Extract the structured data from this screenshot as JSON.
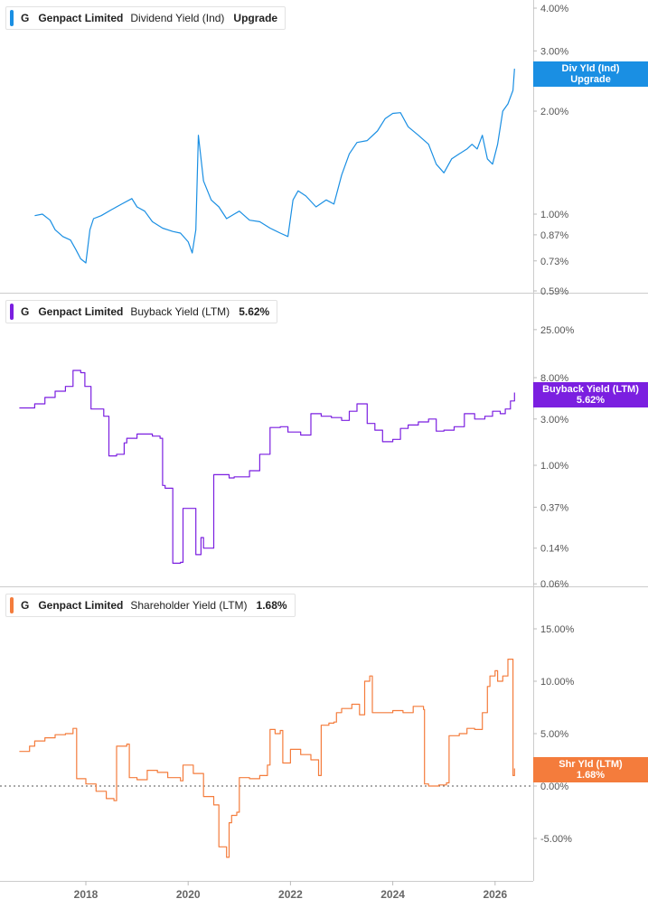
{
  "panels": [
    {
      "ticker": "G",
      "company": "Genpact Limited",
      "metric": "Dividend Yield (Ind)",
      "value": "Upgrade",
      "color": "#1a8fe3",
      "flag_lines": [
        "Div Yld (Ind)",
        "Upgrade"
      ],
      "ticks": [
        "4.00%",
        "3.00%",
        "2.00%",
        "1.00%",
        "0.87%",
        "0.73%",
        "0.59%"
      ]
    },
    {
      "ticker": "G",
      "company": "Genpact Limited",
      "metric": "Buyback Yield (LTM)",
      "value": "5.62%",
      "color": "#7b1fe0",
      "flag_lines": [
        "Buyback Yield (LTM)",
        "5.62%"
      ],
      "ticks": [
        "25.00%",
        "8.00%",
        "3.00%",
        "1.00%",
        "0.37%",
        "0.14%",
        "0.06%"
      ]
    },
    {
      "ticker": "G",
      "company": "Genpact Limited",
      "metric": "Shareholder Yield (LTM)",
      "value": "1.68%",
      "color": "#f47c3c",
      "flag_lines": [
        "Shr Yld (LTM)",
        "1.68%"
      ],
      "ticks": [
        "15.00%",
        "10.00%",
        "5.00%",
        "0.00%",
        "-5.00%"
      ]
    }
  ],
  "x_ticks": [
    "2018",
    "2020",
    "2022",
    "2024",
    "2026"
  ],
  "chart_data": [
    {
      "type": "line",
      "series": [
        {
          "name": "Dividend Yield (Ind)",
          "x": [
            2017.0,
            2017.15,
            2017.3,
            2017.4,
            2017.55,
            2017.7,
            2017.8,
            2017.9,
            2018.0,
            2018.08,
            2018.15,
            2018.3,
            2018.5,
            2018.7,
            2018.9,
            2019.0,
            2019.15,
            2019.3,
            2019.5,
            2019.7,
            2019.85,
            2020.0,
            2020.08,
            2020.15,
            2020.2,
            2020.3,
            2020.45,
            2020.6,
            2020.75,
            2020.9,
            2021.0,
            2021.2,
            2021.4,
            2021.6,
            2021.8,
            2021.95,
            2022.05,
            2022.15,
            2022.3,
            2022.5,
            2022.7,
            2022.85,
            2023.0,
            2023.15,
            2023.3,
            2023.5,
            2023.7,
            2023.85,
            2024.0,
            2024.15,
            2024.3,
            2024.5,
            2024.7,
            2024.85,
            2025.0,
            2025.15,
            2025.3,
            2025.45,
            2025.55,
            2025.65,
            2025.75,
            2025.85,
            2025.95,
            2026.05,
            2026.15,
            2026.25,
            2026.35,
            2026.38
          ],
          "y": [
            0.99,
            1.0,
            0.96,
            0.9,
            0.86,
            0.84,
            0.79,
            0.74,
            0.72,
            0.9,
            0.97,
            0.99,
            1.03,
            1.07,
            1.11,
            1.05,
            1.02,
            0.95,
            0.91,
            0.89,
            0.88,
            0.83,
            0.77,
            0.9,
            1.7,
            1.25,
            1.1,
            1.05,
            0.97,
            1.0,
            1.02,
            0.96,
            0.95,
            0.91,
            0.88,
            0.86,
            1.1,
            1.17,
            1.13,
            1.05,
            1.1,
            1.07,
            1.3,
            1.5,
            1.62,
            1.64,
            1.75,
            1.9,
            1.97,
            1.98,
            1.8,
            1.7,
            1.6,
            1.4,
            1.32,
            1.45,
            1.5,
            1.55,
            1.6,
            1.55,
            1.7,
            1.45,
            1.4,
            1.6,
            2.0,
            2.1,
            2.3,
            2.66
          ]
        }
      ],
      "ylim": [
        0.59,
        4.0
      ],
      "scale": "log"
    },
    {
      "type": "line",
      "series": [
        {
          "name": "Buyback Yield (LTM)",
          "x": [
            2016.7,
            2017.0,
            2017.2,
            2017.4,
            2017.6,
            2017.75,
            2017.9,
            2017.98,
            2018.1,
            2018.35,
            2018.45,
            2018.6,
            2018.75,
            2018.8,
            2019.0,
            2019.1,
            2019.3,
            2019.45,
            2019.5,
            2019.55,
            2019.7,
            2019.85,
            2019.9,
            2020.1,
            2020.15,
            2020.25,
            2020.3,
            2020.5,
            2020.8,
            2020.9,
            2021.2,
            2021.4,
            2021.6,
            2021.8,
            2021.95,
            2022.2,
            2022.4,
            2022.6,
            2022.8,
            2023.0,
            2023.15,
            2023.3,
            2023.5,
            2023.65,
            2023.8,
            2024.0,
            2024.15,
            2024.3,
            2024.5,
            2024.7,
            2024.85,
            2025.0,
            2025.2,
            2025.4,
            2025.6,
            2025.8,
            2025.95,
            2026.1,
            2026.2,
            2026.3,
            2026.38
          ],
          "y": [
            3.9,
            4.3,
            5.0,
            5.8,
            6.5,
            9.5,
            9.0,
            6.5,
            3.8,
            3.2,
            1.25,
            1.3,
            1.7,
            1.9,
            2.1,
            2.1,
            2.0,
            1.9,
            0.62,
            0.58,
            0.098,
            0.1,
            0.36,
            0.36,
            0.12,
            0.18,
            0.14,
            0.8,
            0.74,
            0.76,
            0.88,
            1.3,
            2.45,
            2.5,
            2.2,
            2.05,
            3.4,
            3.2,
            3.1,
            2.9,
            3.6,
            4.3,
            2.7,
            2.3,
            1.75,
            1.85,
            2.4,
            2.6,
            2.8,
            3.0,
            2.25,
            2.3,
            2.5,
            3.4,
            3.0,
            3.2,
            3.6,
            3.4,
            3.8,
            4.6,
            5.62
          ]
        }
      ],
      "ylim": [
        0.06,
        25.0
      ],
      "scale": "log"
    },
    {
      "type": "line",
      "series": [
        {
          "name": "Shareholder Yield (LTM)",
          "x": [
            2016.7,
            2016.9,
            2017.0,
            2017.2,
            2017.4,
            2017.6,
            2017.75,
            2017.82,
            2018.0,
            2018.2,
            2018.4,
            2018.55,
            2018.6,
            2018.8,
            2018.85,
            2019.0,
            2019.2,
            2019.4,
            2019.6,
            2019.85,
            2019.9,
            2020.1,
            2020.3,
            2020.5,
            2020.6,
            2020.75,
            2020.8,
            2020.85,
            2020.95,
            2021.0,
            2021.2,
            2021.4,
            2021.55,
            2021.6,
            2021.7,
            2021.8,
            2021.85,
            2022.0,
            2022.2,
            2022.4,
            2022.55,
            2022.6,
            2022.75,
            2022.85,
            2022.9,
            2023.0,
            2023.2,
            2023.35,
            2023.45,
            2023.55,
            2023.6,
            2023.8,
            2024.0,
            2024.2,
            2024.4,
            2024.6,
            2024.62,
            2024.7,
            2024.9,
            2025.05,
            2025.1,
            2025.3,
            2025.45,
            2025.6,
            2025.75,
            2025.85,
            2025.9,
            2026.0,
            2026.05,
            2026.15,
            2026.25,
            2026.35,
            2026.38
          ],
          "y": [
            3.3,
            3.8,
            4.3,
            4.6,
            4.9,
            5.0,
            5.5,
            0.7,
            0.2,
            -0.5,
            -1.2,
            -1.4,
            3.8,
            4.0,
            0.8,
            0.6,
            1.5,
            1.3,
            0.8,
            0.5,
            2.0,
            1.2,
            -1.0,
            -1.8,
            -5.8,
            -6.8,
            -3.5,
            -2.8,
            -2.5,
            0.8,
            0.7,
            1.0,
            2.0,
            5.4,
            5.0,
            5.3,
            2.2,
            3.5,
            3.0,
            2.5,
            1.0,
            5.8,
            6.0,
            6.1,
            7.0,
            7.4,
            7.8,
            6.8,
            10.0,
            10.5,
            7.0,
            7.0,
            7.2,
            7.0,
            7.6,
            7.3,
            0.2,
            0.0,
            0.1,
            0.3,
            4.8,
            5.0,
            5.5,
            5.4,
            7.0,
            9.5,
            10.5,
            11.0,
            10.0,
            10.5,
            12.1,
            1.0,
            1.68
          ]
        }
      ],
      "ylim": [
        -7.0,
        16.0
      ],
      "scale": "linear"
    }
  ]
}
